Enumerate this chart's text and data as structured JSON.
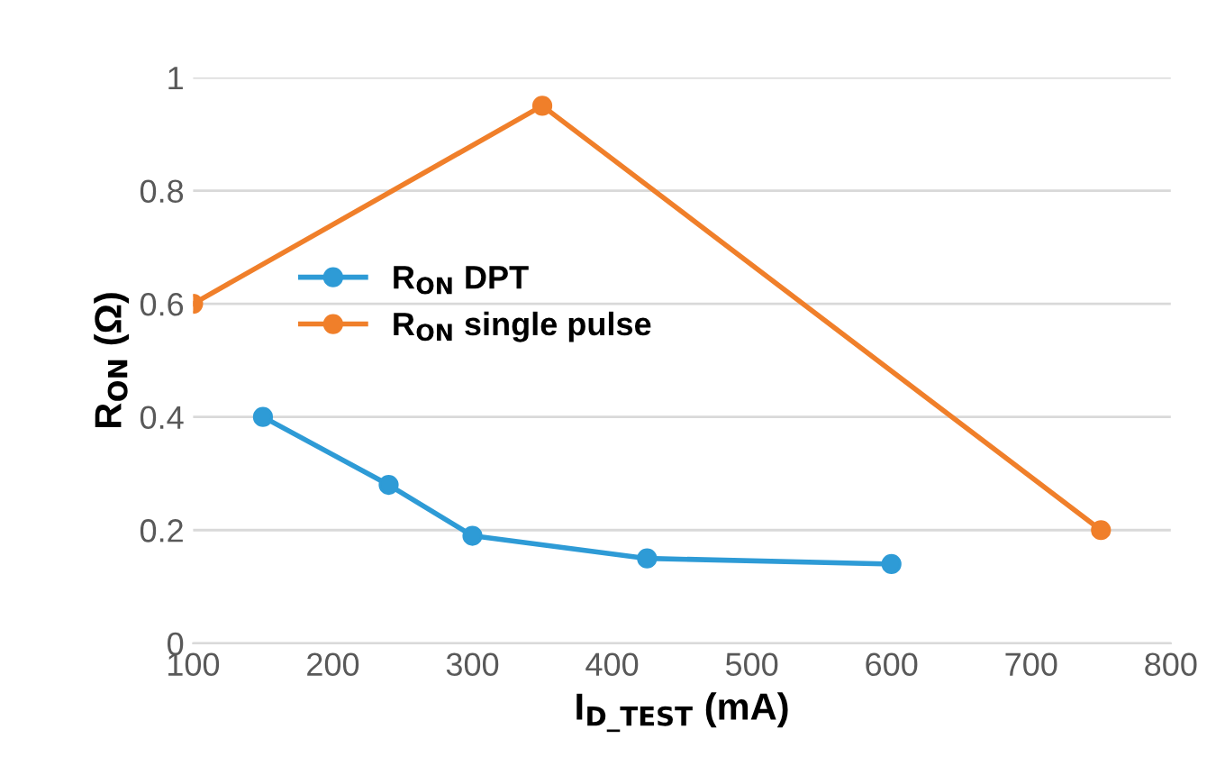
{
  "chart_data": {
    "type": "line",
    "xlabel": "I$_{D_TEST}$ (mA)",
    "ylabel": "R$_{ON}$ (Ω)",
    "series": [
      {
        "name": "R$_{ON}$ DPT",
        "color": "#2e9bd6",
        "x": [
          150,
          240,
          300,
          425,
          600
        ],
        "values": [
          0.4,
          0.28,
          0.19,
          0.15,
          0.14
        ]
      },
      {
        "name": "R$_{ON}$ single pulse",
        "color": "#f07f2a",
        "x": [
          100,
          350,
          750
        ],
        "values": [
          0.6,
          0.95,
          0.2
        ]
      }
    ],
    "xlim": [
      100,
      800
    ],
    "xticks": [
      100,
      200,
      300,
      400,
      500,
      600,
      700,
      800
    ],
    "ylim": [
      0,
      1
    ],
    "yticks": [
      0,
      0.2,
      0.4,
      0.6,
      0.8,
      1
    ],
    "grid": "y",
    "legend": "center left",
    "marker": "circle",
    "line_style": "solid"
  }
}
